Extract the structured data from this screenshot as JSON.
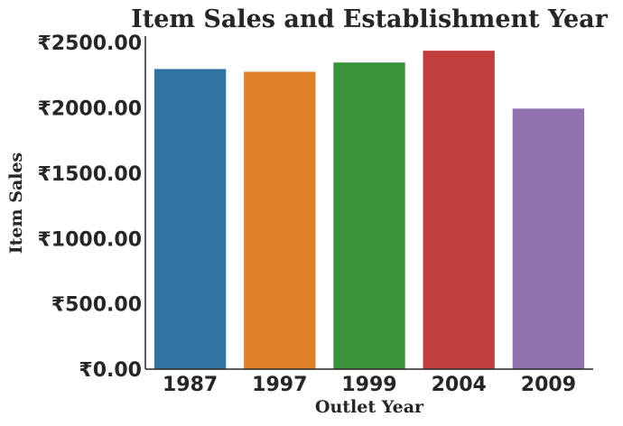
{
  "chart_data": {
    "type": "bar",
    "title": "Item Sales and Establishment Year",
    "xlabel": "Outlet Year",
    "ylabel": "Item Sales",
    "categories": [
      "1987",
      "1997",
      "1999",
      "2004",
      "2009"
    ],
    "values": [
      2298,
      2277,
      2348,
      2438,
      1995
    ],
    "colors": [
      "#3274a1",
      "#e1812c",
      "#3a923a",
      "#c03d3e",
      "#9372b2"
    ],
    "ylim": [
      0,
      2550
    ],
    "yticks": [
      0,
      500,
      1000,
      1500,
      2000,
      2500
    ],
    "ytick_labels": [
      "₹0.00",
      "₹500.00",
      "₹1000.00",
      "₹1500.00",
      "₹2000.00",
      "₹2500.00"
    ],
    "grid": false,
    "legend": "none"
  }
}
